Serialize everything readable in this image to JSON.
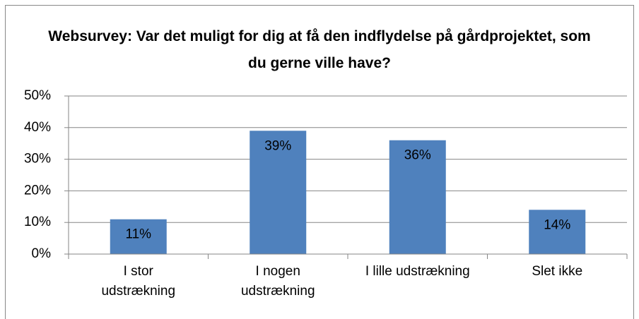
{
  "chart_data": {
    "type": "bar",
    "title": "Websurvey: Var det muligt for dig at få den indflydelse på gårdprojektet, som du gerne ville have?",
    "categories": [
      "I stor udstrækning",
      "I nogen udstrækning",
      "I lille udstrækning",
      "Slet ikke"
    ],
    "values": [
      11,
      39,
      36,
      14
    ],
    "value_labels": [
      "11%",
      "39%",
      "36%",
      "14%"
    ],
    "color": "#4f81bd",
    "ylim": [
      0,
      50
    ],
    "yticks": [
      {
        "value": 0,
        "label": "0%"
      },
      {
        "value": 10,
        "label": "10%"
      },
      {
        "value": 20,
        "label": "20%"
      },
      {
        "value": 30,
        "label": "30%"
      },
      {
        "value": 40,
        "label": "40%"
      },
      {
        "value": 50,
        "label": "50%"
      }
    ],
    "grid": true
  }
}
